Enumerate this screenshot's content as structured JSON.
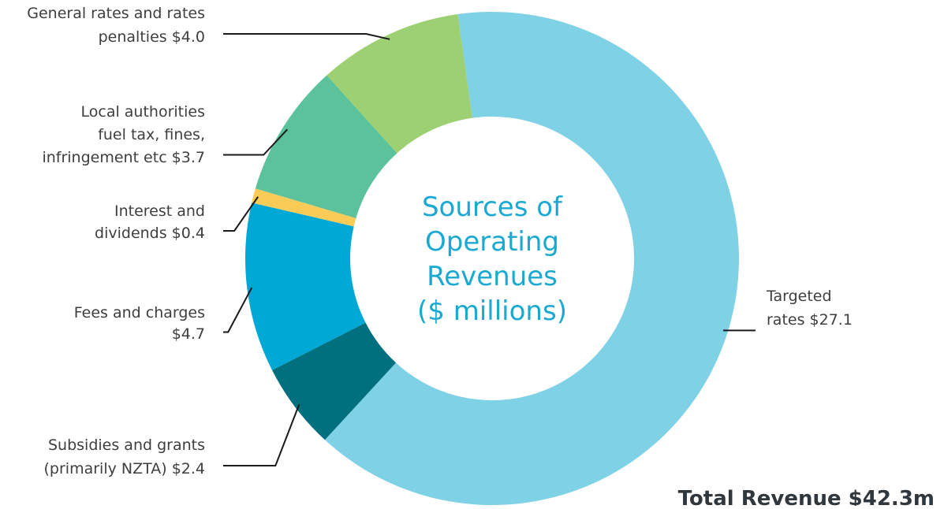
{
  "chart_data": {
    "type": "pie",
    "title": "Sources of Operating Revenues ($ millions)",
    "title_lines": [
      "Sources of",
      "Operating",
      "Revenues",
      "($ millions)"
    ],
    "total_label": "Total Revenue $42.3m",
    "slices": [
      {
        "name": "Targeted rates",
        "value": 27.1,
        "color": "#7fd1e6",
        "label_lines": [
          "Targeted",
          "rates $27.1"
        ]
      },
      {
        "name": "Subsidies and grants (primarily NZTA)",
        "value": 2.4,
        "color": "#00707f",
        "label_lines": [
          "Subsidies and grants",
          "(primarily NZTA) $2.4"
        ]
      },
      {
        "name": "Fees and charges",
        "value": 4.7,
        "color": "#00a8d6",
        "label_lines": [
          "Fees and charges",
          "$4.7"
        ]
      },
      {
        "name": "Interest and dividends",
        "value": 0.4,
        "color": "#fbcb58",
        "label_lines": [
          "Interest and",
          "dividends $0.4"
        ]
      },
      {
        "name": "Local authorities fuel tax, fines, infringement etc",
        "value": 3.7,
        "color": "#5cc29b",
        "label_lines": [
          "Local authorities",
          "fuel tax, fines,",
          "infringement etc $3.7"
        ]
      },
      {
        "name": "General rates and rates penalties",
        "value": 4.0,
        "color": "#9dd072",
        "label_lines": [
          "General rates and rates",
          "penalties $4.0"
        ]
      }
    ]
  }
}
